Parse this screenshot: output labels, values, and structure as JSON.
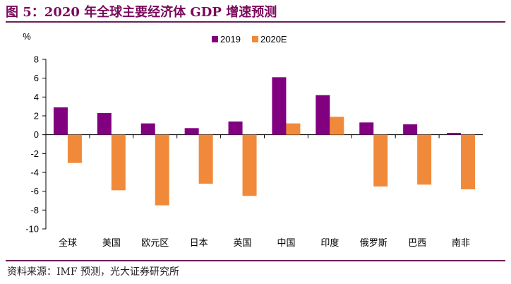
{
  "title": "图 5：2020 年全球主要经济体 GDP 增速预测",
  "source": "资料来源：IMF 预测，光大证券研究所",
  "colors": {
    "s2019": "#800080",
    "s2020E": "#f08a3a",
    "title": "#7a0a5a",
    "rule": "#6b1f5e"
  },
  "chart_data": {
    "type": "bar",
    "ylabel": "%",
    "ylim": [
      -10,
      8
    ],
    "yticks": [
      8,
      6,
      4,
      2,
      0,
      -2,
      -4,
      -6,
      -8,
      -10
    ],
    "categories": [
      "全球",
      "美国",
      "欧元区",
      "日本",
      "英国",
      "中国",
      "印度",
      "俄罗斯",
      "巴西",
      "南非"
    ],
    "series": [
      {
        "name": "2019",
        "values": [
          2.9,
          2.3,
          1.2,
          0.7,
          1.4,
          6.1,
          4.2,
          1.3,
          1.1,
          0.2
        ]
      },
      {
        "name": "2020E",
        "values": [
          -3.0,
          -5.9,
          -7.5,
          -5.2,
          -6.5,
          1.2,
          1.9,
          -5.5,
          -5.3,
          -5.8
        ]
      }
    ],
    "legend_position": "top"
  }
}
